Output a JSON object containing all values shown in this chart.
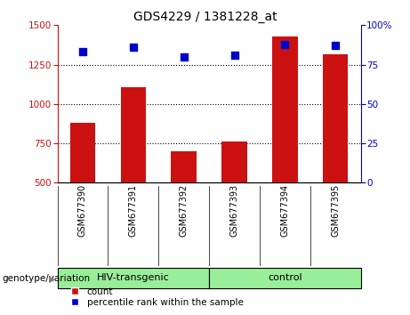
{
  "title": "GDS4229 / 1381228_at",
  "samples": [
    "GSM677390",
    "GSM677391",
    "GSM677392",
    "GSM677393",
    "GSM677394",
    "GSM677395"
  ],
  "counts": [
    880,
    1105,
    700,
    760,
    1430,
    1315
  ],
  "percentiles": [
    83,
    86,
    80,
    81,
    88,
    87
  ],
  "ylim_left": [
    500,
    1500
  ],
  "ylim_right": [
    0,
    100
  ],
  "yticks_left": [
    500,
    750,
    1000,
    1250,
    1500
  ],
  "yticks_right": [
    0,
    25,
    50,
    75,
    100
  ],
  "grid_lines": [
    750,
    1000,
    1250
  ],
  "bar_color": "#cc1111",
  "dot_color": "#0000cc",
  "group_labels": [
    "HIV-transgenic",
    "control"
  ],
  "group_ranges": [
    [
      0,
      3
    ],
    [
      3,
      6
    ]
  ],
  "group_color": "#99ee99",
  "xlabel_left": "genotype/variation",
  "legend_count": "count",
  "legend_percentile": "percentile rank within the sample",
  "bar_width": 0.5,
  "dot_size": 40,
  "bg_label": "#d3d3d3",
  "title_fontsize": 10
}
